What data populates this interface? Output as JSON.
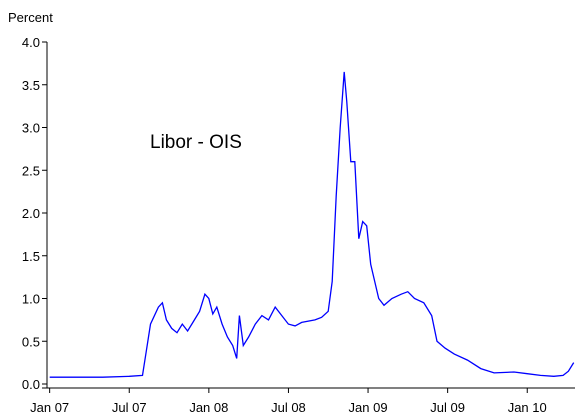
{
  "chart_data": {
    "type": "line",
    "y_label": "Percent",
    "annotation": "Libor - OIS",
    "xlim": [
      -0.2,
      39.6
    ],
    "xticks": [
      {
        "value": 0,
        "label": "Jan 07"
      },
      {
        "value": 6,
        "label": "Jul 07"
      },
      {
        "value": 12,
        "label": "Jan 08"
      },
      {
        "value": 18,
        "label": "Jul 08"
      },
      {
        "value": 24,
        "label": "Jan 09"
      },
      {
        "value": 30,
        "label": "Jul 09"
      },
      {
        "value": 36,
        "label": "Jan 10"
      }
    ],
    "ylim": [
      0,
      4
    ],
    "yticks": [
      {
        "value": 0,
        "label": "0.0"
      },
      {
        "value": 0.5,
        "label": "0.5"
      },
      {
        "value": 1,
        "label": "1.0"
      },
      {
        "value": 1.5,
        "label": "1.5"
      },
      {
        "value": 2,
        "label": "2.0"
      },
      {
        "value": 2.5,
        "label": "2.5"
      },
      {
        "value": 3,
        "label": "3.0"
      },
      {
        "value": 3.5,
        "label": "3.5"
      },
      {
        "value": 4,
        "label": "4.0"
      }
    ],
    "grid": false,
    "x": [
      0,
      2,
      4,
      6,
      7,
      7.3,
      7.6,
      8.2,
      8.5,
      8.8,
      9.2,
      9.6,
      10,
      10.4,
      10.8,
      11.3,
      11.7,
      12,
      12.3,
      12.6,
      13,
      13.4,
      13.8,
      14.1,
      14.3,
      14.6,
      15,
      15.5,
      16,
      16.5,
      17,
      17.5,
      18,
      18.5,
      19,
      20,
      20.5,
      21,
      21.3,
      21.6,
      21.9,
      22.2,
      22.4,
      22.7,
      23,
      23.3,
      23.6,
      23.9,
      24.2,
      24.5,
      24.8,
      25.2,
      25.8,
      26.5,
      27,
      27.5,
      28.2,
      28.8,
      29.2,
      29.8,
      30.5,
      31.5,
      32.5,
      33.5,
      35,
      36,
      37,
      38,
      38.7,
      39.1,
      39.5
    ],
    "series": [
      {
        "name": "Libor - OIS",
        "color": "#0000ff",
        "values": [
          0.08,
          0.08,
          0.08,
          0.09,
          0.1,
          0.4,
          0.7,
          0.9,
          0.95,
          0.75,
          0.65,
          0.6,
          0.7,
          0.62,
          0.72,
          0.85,
          1.05,
          1.0,
          0.82,
          0.9,
          0.7,
          0.55,
          0.45,
          0.3,
          0.8,
          0.45,
          0.55,
          0.7,
          0.8,
          0.75,
          0.9,
          0.8,
          0.7,
          0.68,
          0.72,
          0.75,
          0.78,
          0.85,
          1.2,
          2.2,
          3.0,
          3.65,
          3.3,
          2.6,
          2.6,
          1.7,
          1.9,
          1.85,
          1.4,
          1.2,
          1.0,
          0.92,
          1.0,
          1.05,
          1.08,
          1.0,
          0.95,
          0.8,
          0.5,
          0.42,
          0.35,
          0.28,
          0.18,
          0.13,
          0.14,
          0.12,
          0.1,
          0.09,
          0.1,
          0.15,
          0.25
        ]
      }
    ]
  }
}
